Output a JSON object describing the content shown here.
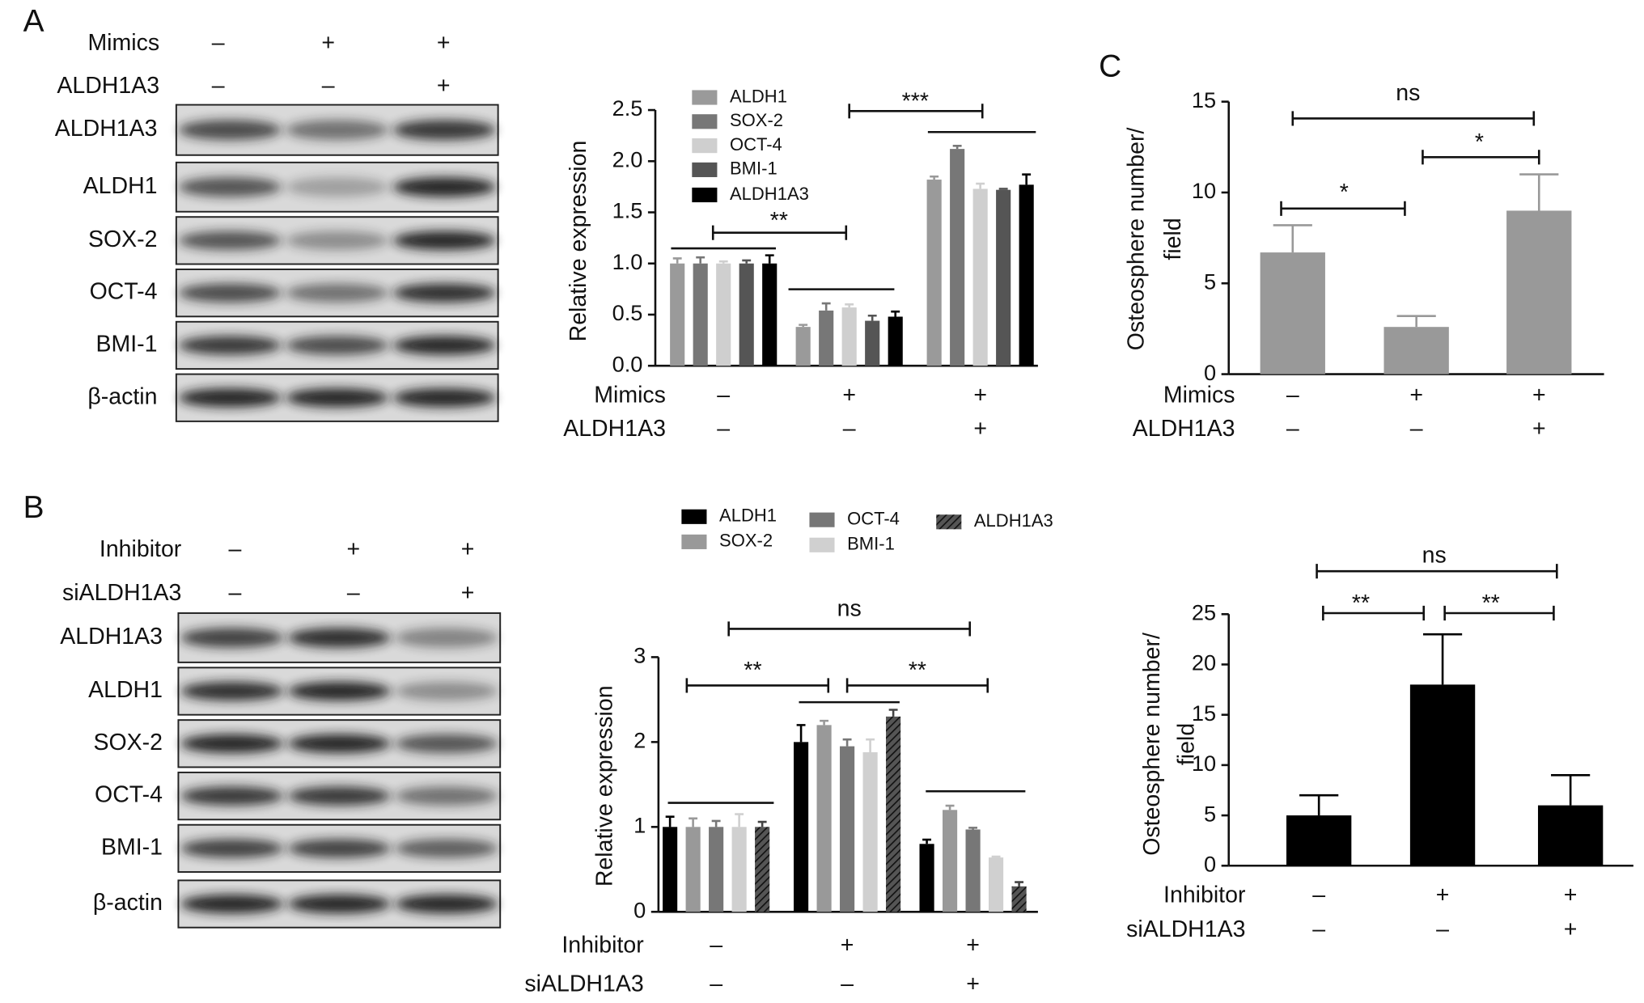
{
  "panel_labels": [
    "A",
    "B",
    "C"
  ],
  "blots": [
    {
      "conditions": [
        {
          "label": "Mimics",
          "signs": [
            "–",
            "+",
            "+"
          ]
        },
        {
          "label": "ALDH1A3",
          "signs": [
            "–",
            "–",
            "+"
          ]
        }
      ],
      "bands": [
        "ALDH1A3",
        "ALDH1",
        "SOX-2",
        "OCT-4",
        "BMI-1",
        "β-actin"
      ]
    },
    {
      "conditions": [
        {
          "label": "Inhibitor",
          "signs": [
            "–",
            "+",
            "+"
          ]
        },
        {
          "label": "siALDH1A3",
          "signs": [
            "–",
            "–",
            "+"
          ]
        }
      ],
      "bands": [
        "ALDH1A3",
        "ALDH1",
        "SOX-2",
        "OCT-4",
        "BMI-1",
        "β-actin"
      ]
    }
  ],
  "chart_data": [
    {
      "type": "bar",
      "ylabel": "Relative expression",
      "ylim": [
        0,
        2.5
      ],
      "yticks": [
        {
          "value": 0,
          "label": "0.0"
        },
        {
          "value": 0.5,
          "label": "0.5"
        },
        {
          "value": 1,
          "label": "1.0"
        },
        {
          "value": 1.5,
          "label": "1.5"
        },
        {
          "value": 2,
          "label": "2.0"
        },
        {
          "value": 2.5,
          "label": "2.5"
        }
      ],
      "conditions": [
        {
          "label": "Mimics",
          "signs": [
            "–",
            "+",
            "+"
          ]
        },
        {
          "label": "ALDH1A3",
          "signs": [
            "–",
            "–",
            "+"
          ]
        }
      ],
      "series": [
        {
          "name": "ALDH1",
          "color": "#9a9a9a",
          "values": [
            1.0,
            0.38,
            1.82
          ],
          "errors": [
            0.05,
            0.02,
            0.03
          ]
        },
        {
          "name": "SOX-2",
          "color": "#777777",
          "values": [
            1.0,
            0.54,
            2.12
          ],
          "errors": [
            0.06,
            0.07,
            0.03
          ]
        },
        {
          "name": "OCT-4",
          "color": "#cfcfcf",
          "values": [
            1.0,
            0.57,
            1.73
          ],
          "errors": [
            0.02,
            0.03,
            0.05
          ]
        },
        {
          "name": "BMI-1",
          "color": "#555555",
          "values": [
            1.0,
            0.44,
            1.72
          ],
          "errors": [
            0.03,
            0.05,
            0.01
          ]
        },
        {
          "name": "ALDH1A3",
          "color": "#000000",
          "values": [
            1.0,
            0.48,
            1.77
          ],
          "errors": [
            0.08,
            0.05,
            0.1
          ]
        }
      ],
      "annotations": [
        "**",
        "***"
      ]
    },
    {
      "type": "bar",
      "ylabel": [
        "Osteosphere number/",
        "field"
      ],
      "ylim": [
        0,
        15
      ],
      "yticks": [
        0,
        5,
        10,
        15
      ],
      "conditions": [
        {
          "label": "Mimics",
          "signs": [
            "–",
            "+",
            "+"
          ]
        },
        {
          "label": "ALDH1A3",
          "signs": [
            "–",
            "–",
            "+"
          ]
        }
      ],
      "series": [
        {
          "color": "#999999",
          "values": [
            6.7,
            2.6,
            9.0
          ],
          "errors": [
            1.5,
            0.6,
            2.0
          ]
        }
      ],
      "annotations": [
        "ns",
        "*",
        "*"
      ]
    },
    {
      "type": "bar",
      "ylabel": "Relative expression",
      "ylim": [
        0,
        3
      ],
      "yticks": [
        0,
        1,
        2,
        3
      ],
      "conditions": [
        {
          "label": "Inhibitor",
          "signs": [
            "–",
            "+",
            "+"
          ]
        },
        {
          "label": "siALDH1A3",
          "signs": [
            "–",
            "–",
            "+"
          ]
        }
      ],
      "series": [
        {
          "name": "ALDH1",
          "color": "#000000",
          "values": [
            1.0,
            2.0,
            0.8
          ],
          "errors": [
            0.12,
            0.2,
            0.05
          ]
        },
        {
          "name": "SOX-2",
          "color": "#999999",
          "values": [
            1.0,
            2.2,
            1.2
          ],
          "errors": [
            0.1,
            0.05,
            0.05
          ]
        },
        {
          "name": "OCT-4",
          "color": "#777777",
          "values": [
            1.0,
            1.95,
            0.97
          ],
          "errors": [
            0.07,
            0.08,
            0.02
          ]
        },
        {
          "name": "BMI-1",
          "color": "#d0d0d0",
          "values": [
            1.0,
            1.88,
            0.64
          ],
          "errors": [
            0.15,
            0.15,
            0.01
          ]
        },
        {
          "name": "ALDH1A3",
          "color": "#444444",
          "hatch": true,
          "values": [
            1.0,
            2.3,
            0.3
          ],
          "errors": [
            0.06,
            0.08,
            0.05
          ]
        }
      ],
      "annotations": [
        "ns",
        "**",
        "**"
      ]
    },
    {
      "type": "bar",
      "ylabel": [
        "Osteosphere number/",
        "field"
      ],
      "ylim": [
        0,
        25
      ],
      "yticks": [
        0,
        5,
        10,
        15,
        20,
        25
      ],
      "conditions": [
        {
          "label": "Inhibitor",
          "signs": [
            "–",
            "+",
            "+"
          ]
        },
        {
          "label": "siALDH1A3",
          "signs": [
            "–",
            "–",
            "+"
          ]
        }
      ],
      "series": [
        {
          "color": "#000000",
          "values": [
            5,
            18,
            6
          ],
          "errors": [
            2,
            5,
            3
          ]
        }
      ],
      "annotations": [
        "ns",
        "**",
        "**"
      ]
    }
  ]
}
